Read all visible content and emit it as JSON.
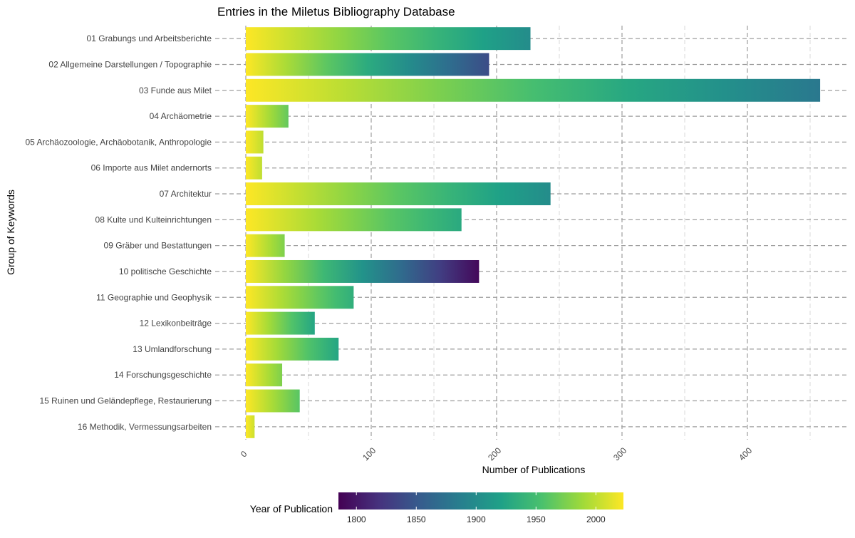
{
  "chart_data": {
    "type": "bar",
    "orientation": "horizontal",
    "stacked": true,
    "title": "Entries in the Miletus Bibliography Database",
    "xlabel": "Number of Publications",
    "ylabel": "Group of Keywords",
    "xlim": [
      0,
      478
    ],
    "xticks": [
      0,
      100,
      200,
      300,
      400
    ],
    "xtick_labels": [
      "0",
      "100",
      "200",
      "300",
      "400"
    ],
    "grid": true,
    "legend": {
      "title": "Year of Publication",
      "placement": "bottom",
      "type": "colorbar",
      "palette": "viridis",
      "range": [
        1785,
        2023
      ],
      "ticks": [
        1800,
        1850,
        1900,
        1950,
        2000
      ],
      "tick_labels": [
        "1800",
        "1850",
        "1900",
        "1950",
        "2000"
      ],
      "colors": [
        "#440154",
        "#46327e",
        "#365c8d",
        "#277f8e",
        "#1fa187",
        "#4ac16d",
        "#a0da39",
        "#fde725"
      ]
    },
    "categories": [
      "01 Grabungs und Arbeitsberichte",
      "02 Allgemeine Darstellungen / Topographie",
      "03 Funde aus Milet",
      "04 Archäometrie",
      "05 Archäozoologie, Archäobotanik, Anthropologie",
      "06 Importe aus Milet andernorts",
      "07 Architektur",
      "08 Kulte und Kulteinrichtungen",
      "09 Gräber und Bestattungen",
      "10 politische Geschichte",
      "11 Geographie und Geophysik",
      "12 Lexikonbeiträge",
      "13 Umlandforschung",
      "14 Forschungsgeschichte",
      "15 Ruinen und Geländepflege, Restaurierung",
      "16 Methodik, Vermessungsarbeiten"
    ],
    "values": [
      227,
      194,
      458,
      34,
      14,
      13,
      243,
      172,
      31,
      186,
      86,
      55,
      74,
      29,
      43,
      7
    ],
    "earliest_year": [
      1900,
      1840,
      1880,
      1965,
      2000,
      2000,
      1900,
      1930,
      1975,
      1790,
      1935,
      1925,
      1925,
      1975,
      1960,
      2005
    ]
  }
}
